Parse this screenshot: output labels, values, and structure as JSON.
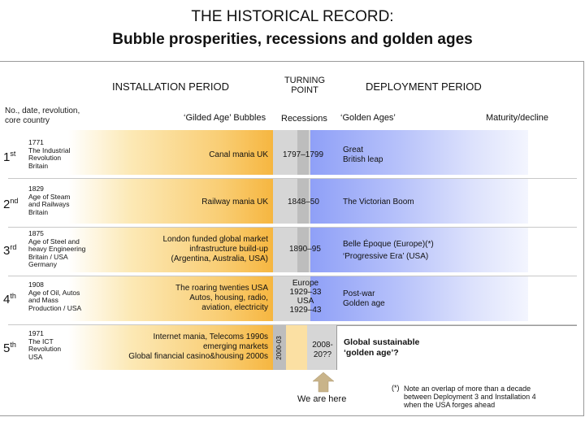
{
  "title": {
    "line1": "THE HISTORICAL RECORD:",
    "line2": "Bubble prosperities, recessions and golden ages"
  },
  "headers": {
    "installation": "INSTALLATION PERIOD",
    "turning_line1": "TURNING",
    "turning_line2": "POINT",
    "deployment": "DEPLOYMENT PERIOD",
    "left_line1": "No., date, revolution,",
    "left_line2": "core country",
    "gilded": "‘Gilded Age’ Bubbles",
    "recessions": "Recessions",
    "golden": "‘Golden Ages’",
    "maturity": "Maturity/decline"
  },
  "rows": [
    {
      "num": "1",
      "sup": "st",
      "year": "1771",
      "rev1": "The Industrial",
      "rev2": "Revolution",
      "rev3": "Britain",
      "rev4": "",
      "mania1": "Canal mania  UK",
      "mania2": "",
      "mania3": "",
      "recession": "1797–1799",
      "recession2": "",
      "recession3": "",
      "recession4": "",
      "golden1": "Great",
      "golden2": "British leap"
    },
    {
      "num": "2",
      "sup": "nd",
      "year": "1829",
      "rev1": "Age of Steam",
      "rev2": "and Railways",
      "rev3": "Britain",
      "rev4": "",
      "mania1": "Railway mania  UK",
      "mania2": "",
      "mania3": "",
      "recession": "1848–50",
      "recession2": "",
      "recession3": "",
      "recession4": "",
      "golden1": "The Victorian  Boom",
      "golden2": ""
    },
    {
      "num": "3",
      "sup": "rd",
      "year": "1875",
      "rev1": "Age of Steel and",
      "rev2": "heavy Engineering",
      "rev3": "Britain / USA",
      "rev4": "Germany",
      "mania1": "London funded global market",
      "mania2": "infrastructure build-up",
      "mania3": "(Argentina, Australia, USA)",
      "recession": "1890–95",
      "recession2": "",
      "recession3": "",
      "recession4": "",
      "golden1": "Belle Époque (Europe)(*)",
      "golden2": "‘Progressive Era’ (USA)"
    },
    {
      "num": "4",
      "sup": "th",
      "year": "1908",
      "rev1": "Age of Oil, Autos",
      "rev2": "and Mass",
      "rev3": "Production / USA",
      "rev4": "",
      "mania1": "The roaring twenties USA",
      "mania2": "Autos, housing, radio,",
      "mania3": "aviation, electricity",
      "recession": "Europe",
      "recession2": "1929–33",
      "recession3": "USA",
      "recession4": "1929–43",
      "golden1": "Post-war",
      "golden2": "Golden age"
    },
    {
      "num": "5",
      "sup": "th",
      "year": "1971",
      "rev1": "The ICT",
      "rev2": "Revolution",
      "rev3": "USA",
      "rev4": "",
      "mania1": "Internet mania, Telecoms 1990s",
      "mania2": "emerging markets",
      "mania3": "Global financial casino&housing 2000s",
      "recession": "2000-03",
      "recession2": "2008-",
      "recession3": "20??",
      "recession4": "",
      "golden1": "Global sustainable",
      "golden2": "‘golden age’?"
    }
  ],
  "we_are_here": "We are here",
  "footnote": {
    "mark": "(*)",
    "line1": "Note an overlap of more than a decade",
    "line2": "between Deployment 3 and Installation 4",
    "line3": "when the USA forges ahead"
  },
  "colors": {
    "installation": "#f6b640",
    "recession": "#d6d6d6",
    "deployment": "#8fa0f7",
    "arrow": "#c9b48a"
  }
}
